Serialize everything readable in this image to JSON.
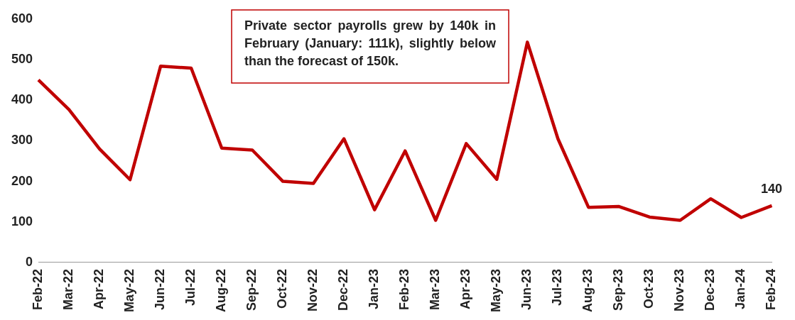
{
  "chart_data": {
    "type": "line",
    "categories": [
      "Feb-22",
      "Mar-22",
      "Apr-22",
      "May-22",
      "Jun-22",
      "Jul-22",
      "Aug-22",
      "Sep-22",
      "Oct-22",
      "Nov-22",
      "Dec-22",
      "Jan-23",
      "Feb-23",
      "Mar-23",
      "Apr-23",
      "May-23",
      "Jun-23",
      "Jul-23",
      "Aug-23",
      "Sep-23",
      "Oct-23",
      "Nov-23",
      "Dec-23",
      "Jan-24",
      "Feb-24"
    ],
    "series": [
      {
        "color": "#c00000",
        "values": [
          450,
          377,
          280,
          204,
          484,
          479,
          282,
          277,
          200,
          195,
          305,
          130,
          275,
          104,
          293,
          205,
          543,
          305,
          136,
          138,
          112,
          104,
          157,
          111,
          140
        ],
        "value_labels": [
          null,
          null,
          null,
          null,
          null,
          null,
          null,
          null,
          null,
          null,
          null,
          null,
          null,
          null,
          null,
          null,
          null,
          null,
          null,
          null,
          null,
          null,
          null,
          null,
          "140"
        ]
      }
    ],
    "ylim": [
      0,
      600
    ],
    "yticks": [
      0,
      100,
      200,
      300,
      400,
      500,
      600
    ],
    "grid": false,
    "legend": false,
    "marker": "none",
    "line_style": "solid",
    "annotations": [
      "Private sector payrolls grew by 140k in February (January: 111k), slightly below than the forecast of 150k."
    ]
  }
}
